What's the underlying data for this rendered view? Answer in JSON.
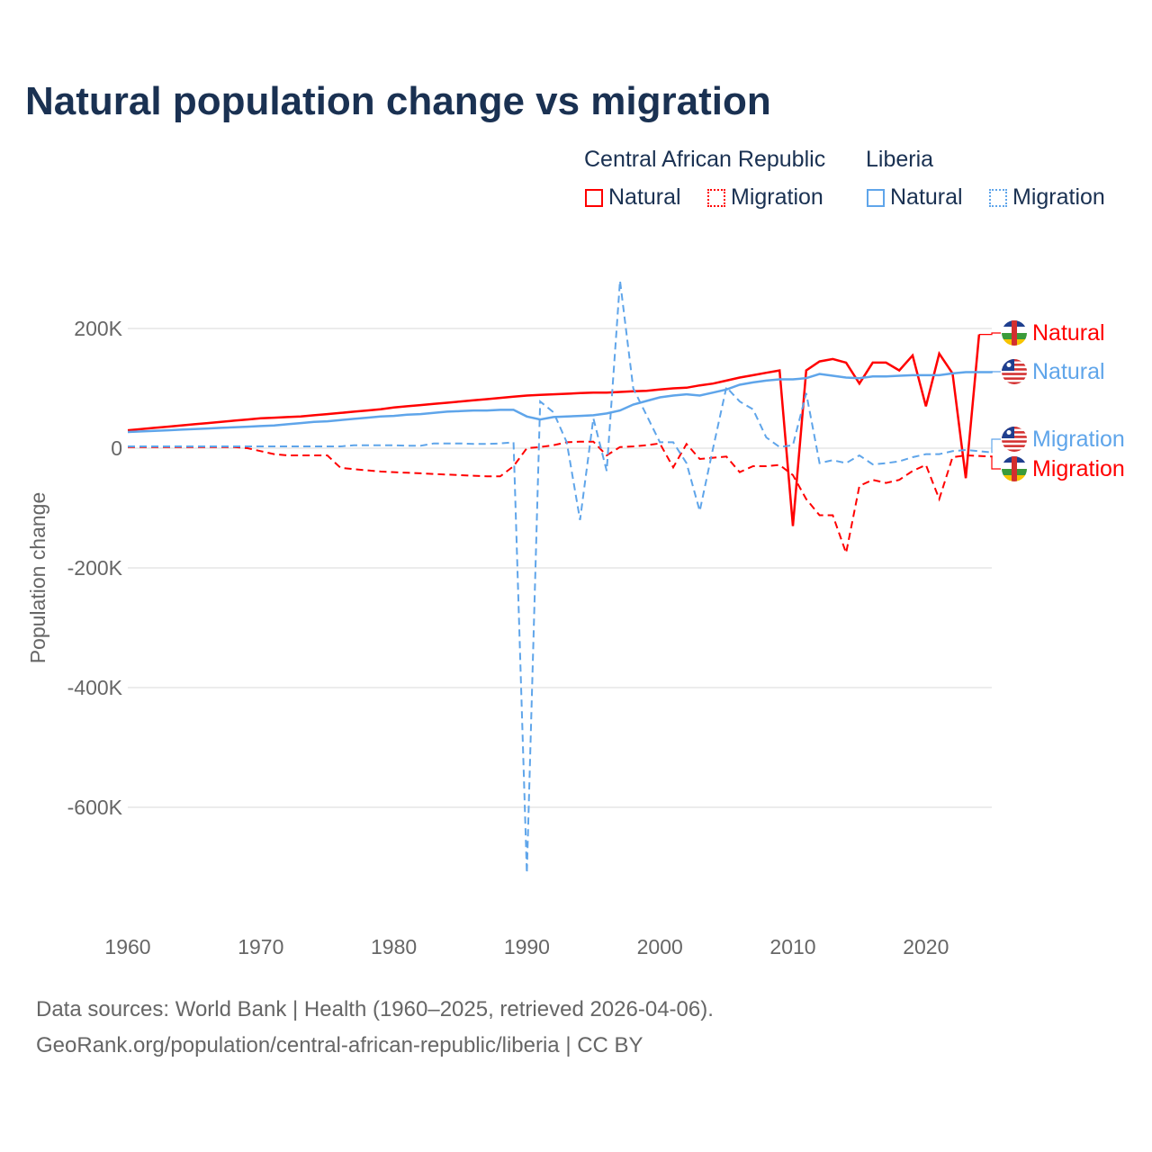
{
  "title": "Natural population change vs migration",
  "legend": {
    "groups": [
      {
        "name": "Central African Republic",
        "items": [
          "Natural",
          "Migration"
        ],
        "color": "#ff0000"
      },
      {
        "name": "Liberia",
        "items": [
          "Natural",
          "Migration"
        ],
        "color": "#5fa5ea"
      }
    ]
  },
  "footer": {
    "line1": "Data sources: World Bank | Health (1960–2025, retrieved 2026-04-06).",
    "line2": "GeoRank.org/population/central-african-republic/liberia | CC BY"
  },
  "chart_data": {
    "type": "line",
    "title": "Natural population change vs migration",
    "xlabel": "",
    "ylabel": "Population change",
    "xlim": [
      1960,
      2025
    ],
    "ylim": [
      -750,
      300
    ],
    "y_unit": "K",
    "yticks": [
      {
        "v": 200,
        "label": "200K"
      },
      {
        "v": 0,
        "label": "0"
      },
      {
        "v": -200,
        "label": "-200K"
      },
      {
        "v": -400,
        "label": "-400K"
      },
      {
        "v": -600,
        "label": "-600K"
      }
    ],
    "xticks": [
      1960,
      1970,
      1980,
      1990,
      2000,
      2010,
      2020
    ],
    "grid": true,
    "x_start": 1960,
    "series": [
      {
        "name": "Natural",
        "country": "Central African Republic",
        "color": "#ff0000",
        "dash": false,
        "end_label": "Natural",
        "values": [
          30,
          32,
          34,
          36,
          38,
          40,
          42,
          44,
          46,
          48,
          50,
          51,
          52,
          53,
          55,
          57,
          59,
          61,
          63,
          65,
          68,
          70,
          72,
          74,
          76,
          78,
          80,
          82,
          84,
          86,
          88,
          89,
          90,
          91,
          92,
          93,
          93,
          94,
          95,
          96,
          98,
          100,
          101,
          105,
          108,
          113,
          118,
          122,
          126,
          130,
          -130,
          130,
          145,
          149,
          143,
          108,
          143,
          143,
          130,
          155,
          70,
          158,
          125,
          -50,
          190,
          null,
          null
        ]
      },
      {
        "name": "Migration",
        "country": "Central African Republic",
        "color": "#ff0000",
        "dash": true,
        "end_label": "Migration",
        "values": [
          2,
          2,
          2,
          2,
          2,
          2,
          2,
          2,
          2,
          0,
          -5,
          -10,
          -12,
          -12,
          -12,
          -12,
          -33,
          -35,
          -37,
          -39,
          -40,
          -41,
          -42,
          -43,
          -44,
          -45,
          -46,
          -47,
          -47,
          -30,
          0,
          2,
          5,
          10,
          11,
          11,
          -12,
          2,
          3,
          5,
          8,
          -32,
          7,
          -18,
          -16,
          -14,
          -40,
          -30,
          -30,
          -28,
          -45,
          -85,
          -112,
          -112,
          -175,
          -63,
          -53,
          -58,
          -53,
          -38,
          -28,
          -85,
          -15,
          -12,
          -13,
          -14
        ]
      },
      {
        "name": "Natural",
        "country": "Liberia",
        "color": "#5fa5ea",
        "dash": false,
        "end_label": "Natural",
        "values": [
          27,
          28,
          29,
          30,
          31,
          32,
          33,
          34,
          35,
          36,
          37,
          38,
          40,
          42,
          44,
          45,
          47,
          49,
          51,
          53,
          54,
          56,
          57,
          59,
          61,
          62,
          63,
          63,
          64,
          64,
          53,
          48,
          52,
          53,
          54,
          55,
          58,
          63,
          73,
          79,
          85,
          88,
          90,
          88,
          93,
          98,
          106,
          110,
          113,
          115,
          115,
          117,
          124,
          121,
          118,
          117,
          120,
          120,
          121,
          122,
          122,
          122,
          125,
          127,
          127,
          127
        ]
      },
      {
        "name": "Migration",
        "country": "Liberia",
        "color": "#5fa5ea",
        "dash": true,
        "end_label": "Migration",
        "values": [
          3,
          3,
          3,
          3,
          3,
          3,
          3,
          3,
          3,
          3,
          3,
          3,
          3,
          3,
          3,
          3,
          3,
          5,
          5,
          5,
          5,
          4,
          4,
          8,
          8,
          8,
          7,
          7,
          8,
          10,
          -710,
          78,
          60,
          10,
          -120,
          50,
          -38,
          280,
          100,
          55,
          10,
          10,
          -25,
          -105,
          0,
          102,
          78,
          65,
          18,
          2,
          5,
          92,
          -25,
          -20,
          -25,
          -12,
          -27,
          -25,
          -22,
          -15,
          -10,
          -10,
          -5,
          -3,
          -5,
          -7
        ]
      }
    ]
  }
}
